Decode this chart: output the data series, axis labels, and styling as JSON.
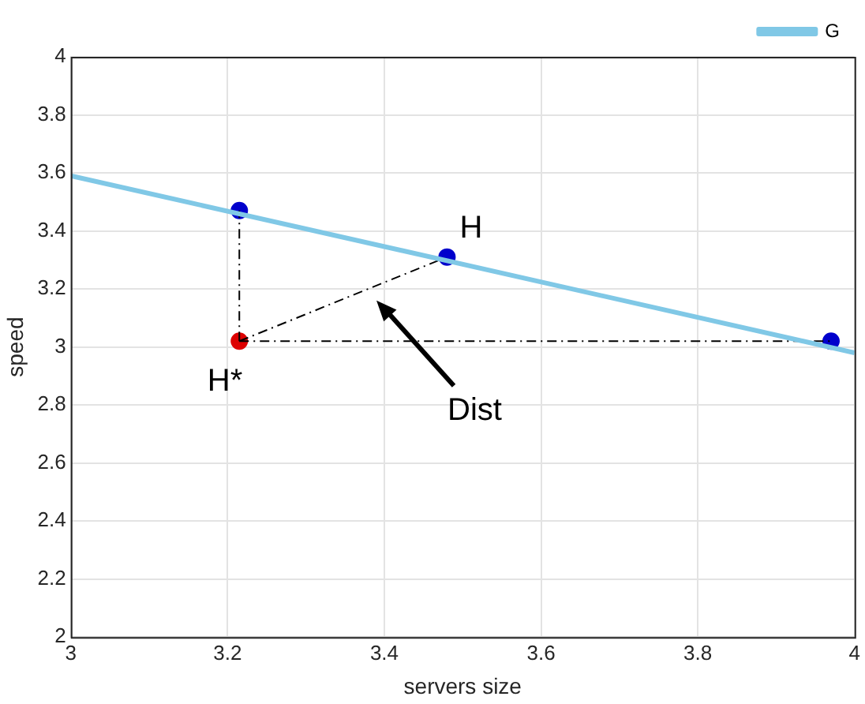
{
  "chart_data": {
    "type": "line",
    "xlabel": "servers size",
    "ylabel": "speed",
    "xlim": [
      3,
      4
    ],
    "xticks": [
      3,
      3.2,
      3.4,
      3.6,
      3.8,
      4
    ],
    "ylim": [
      2,
      4
    ],
    "yticks": [
      2,
      2.2,
      2.4,
      2.6,
      2.8,
      3,
      3.2,
      3.4,
      3.6,
      3.8,
      4
    ],
    "grid": true,
    "legend": "top right",
    "series": [
      {
        "name": "G",
        "type": "line",
        "color": "#80c8e6",
        "x": [
          3,
          4
        ],
        "values": [
          3.59,
          2.98
        ],
        "marker": "none",
        "line_style": "solid"
      },
      {
        "type": "line",
        "color": "#000000",
        "x": [
          3.215,
          3.215
        ],
        "values": [
          3.02,
          3.47
        ],
        "marker": "none",
        "line_style": "dashed"
      },
      {
        "type": "line",
        "color": "#000000",
        "x": [
          3.215,
          3.97
        ],
        "values": [
          3.02,
          3.02
        ],
        "marker": "none",
        "line_style": "dashed"
      },
      {
        "type": "line",
        "color": "#000000",
        "x": [
          3.215,
          3.48
        ],
        "values": [
          3.02,
          3.31
        ],
        "marker": "none",
        "line_style": "dashed"
      },
      {
        "type": "scatter",
        "color": "#0000cc",
        "x": [
          3.215,
          3.48,
          3.97
        ],
        "values": [
          3.47,
          3.31,
          3.02
        ],
        "marker": "circle"
      },
      {
        "type": "scatter",
        "color": "#dd0000",
        "x": [
          3.215
        ],
        "values": [
          3.02
        ],
        "marker": "circle"
      }
    ],
    "annotations": [
      {
        "text": "H",
        "x": 3.48,
        "y": 3.31
      },
      {
        "text": "H*",
        "x": 3.215,
        "y": 3.02
      },
      "Dist"
    ]
  }
}
